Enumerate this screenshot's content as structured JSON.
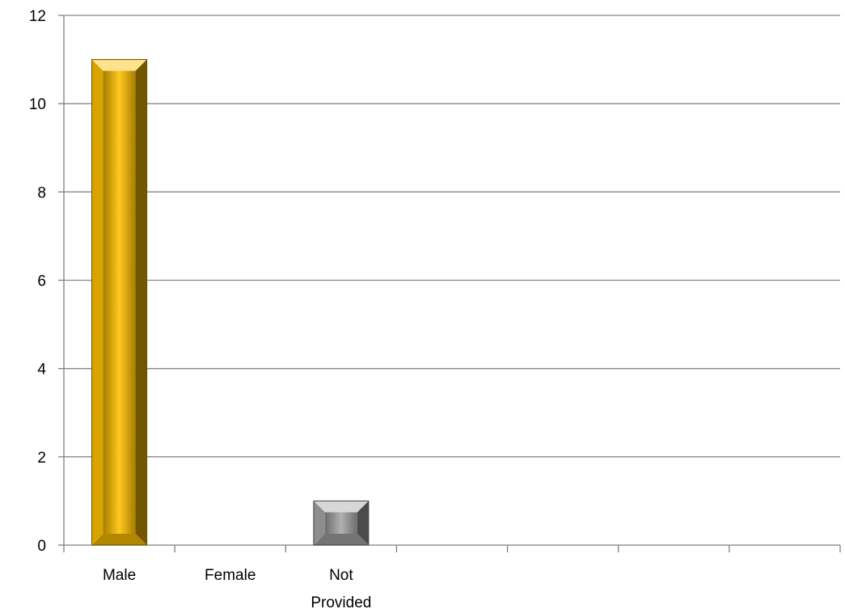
{
  "chart_data": {
    "type": "bar",
    "categories": [
      "Male",
      "Female",
      "Not Provided",
      "",
      "",
      "",
      ""
    ],
    "category_lines": [
      [
        "Male"
      ],
      [
        "Female"
      ],
      [
        "Not",
        "Provided"
      ],
      [],
      [],
      [],
      []
    ],
    "values": [
      11,
      0,
      1,
      null,
      null,
      null,
      null
    ],
    "bar_colors": [
      "#ffc000",
      null,
      "#a6a6a6",
      null,
      null,
      null,
      null
    ],
    "yticks": [
      "0",
      "2",
      "4",
      "6",
      "8",
      "10",
      "12"
    ],
    "ylim": [
      0,
      12
    ],
    "grid": true,
    "title": "",
    "xlabel": "",
    "ylabel": ""
  }
}
